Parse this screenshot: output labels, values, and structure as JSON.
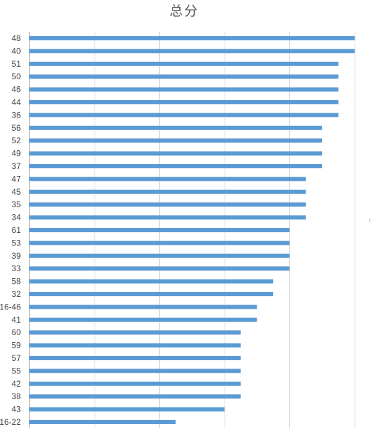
{
  "chart_data": {
    "type": "bar",
    "orientation": "horizontal",
    "title": "总分",
    "xlabel": "",
    "ylabel": "",
    "xlim": [
      0,
      100
    ],
    "grid": true,
    "legend": "none",
    "bar_color": "#5b9bd5",
    "categories": [
      "48",
      "40",
      "51",
      "50",
      "46",
      "44",
      "36",
      "56",
      "52",
      "49",
      "37",
      "47",
      "45",
      "35",
      "34",
      "61",
      "53",
      "39",
      "33",
      "58",
      "32",
      "16-46",
      "41",
      "60",
      "59",
      "57",
      "55",
      "42",
      "38",
      "43",
      "16-22"
    ],
    "values": [
      100,
      100,
      95,
      95,
      95,
      95,
      95,
      90,
      90,
      90,
      90,
      85,
      85,
      85,
      85,
      80,
      80,
      80,
      80,
      75,
      75,
      70,
      70,
      65,
      65,
      65,
      65,
      65,
      65,
      60,
      45
    ]
  }
}
